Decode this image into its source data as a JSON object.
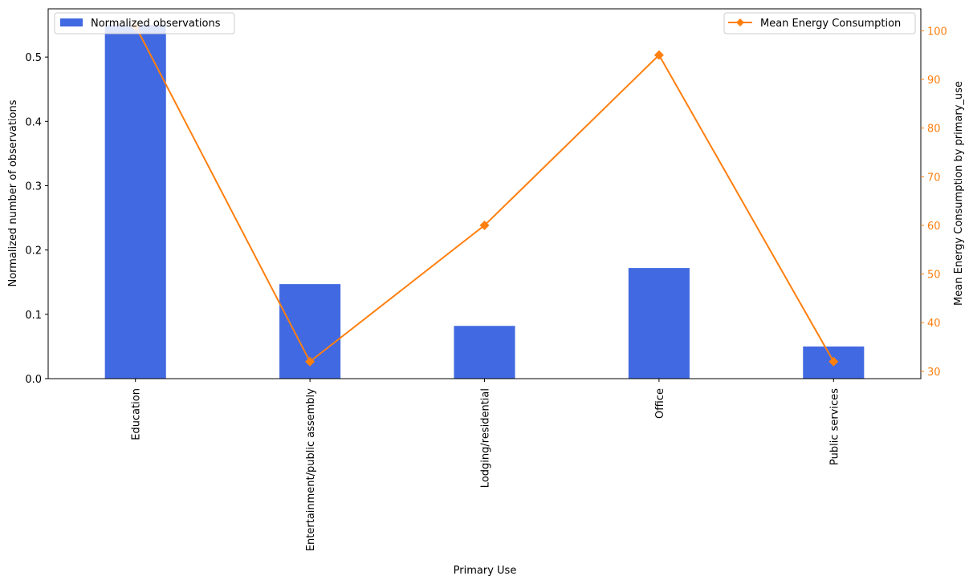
{
  "chart_data": {
    "type": "bar",
    "categories": [
      "Education",
      "Entertainment/public assembly",
      "Lodging/residential",
      "Office",
      "Public services"
    ],
    "xlabel": "Primary Use",
    "grid": false,
    "bar_series": {
      "name": "Normalized observations",
      "color": "#4169e1",
      "values": [
        0.55,
        0.147,
        0.082,
        0.172,
        0.05
      ],
      "ylabel": "Normalized number of observations",
      "ylim": [
        0,
        0.575
      ],
      "yticks": [
        0.0,
        0.1,
        0.2,
        0.3,
        0.4,
        0.5
      ],
      "ytick_labels": [
        "0.0",
        "0.1",
        "0.2",
        "0.3",
        "0.4",
        "0.5"
      ],
      "legend_position": "top-left"
    },
    "line_series": {
      "name": "Mean Energy Consumption",
      "color": "#ff7f0e",
      "marker": "diamond",
      "values": [
        101,
        32,
        60,
        95,
        32
      ],
      "ylabel": "Mean Energy Consumption by primary_use",
      "ylim": [
        28.5,
        104.5
      ],
      "yticks": [
        30,
        40,
        50,
        60,
        70,
        80,
        90,
        100
      ],
      "ytick_labels": [
        "30",
        "40",
        "50",
        "60",
        "70",
        "80",
        "90",
        "100"
      ],
      "legend_position": "top-right"
    }
  }
}
